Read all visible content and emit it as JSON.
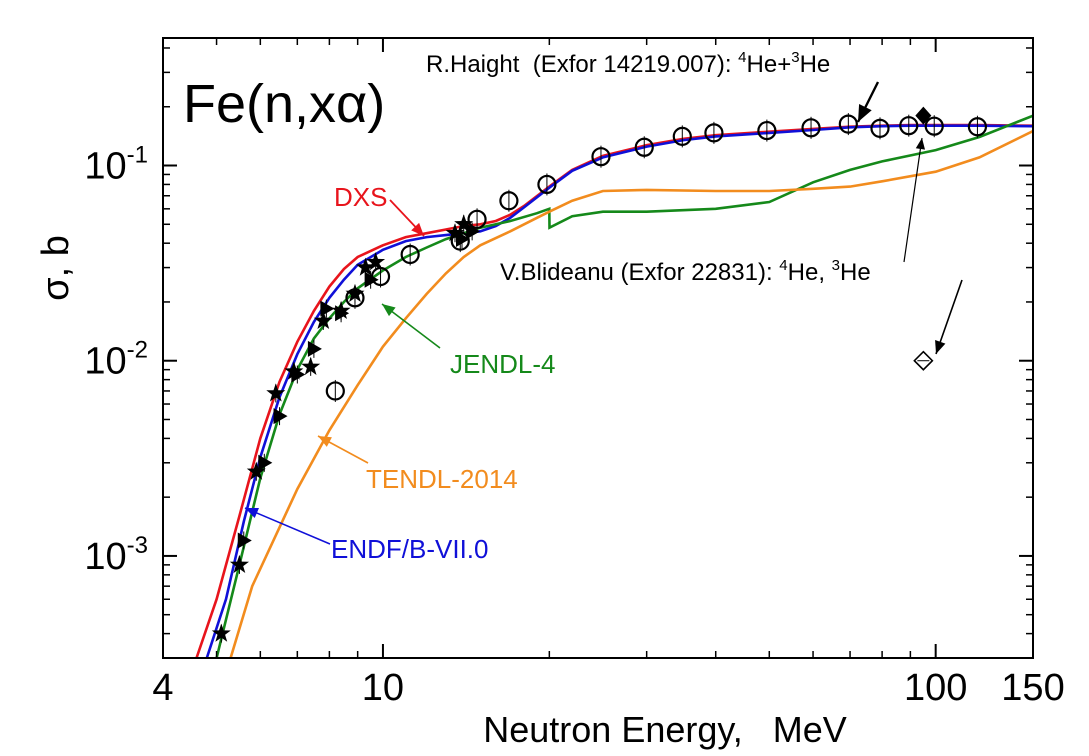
{
  "chart_data": {
    "type": "line",
    "title": "Fe(n,xα)",
    "xlabel": "Neutron Energy,   MeV",
    "ylabel": "σ,  b",
    "xscale": "log",
    "yscale": "log",
    "xlim": [
      4,
      150
    ],
    "ylim": [
      0.0003,
      0.45
    ],
    "x_ticks": [
      {
        "value": 4,
        "label": "4"
      },
      {
        "value": 10,
        "label": "10"
      },
      {
        "value": 100,
        "label": "100"
      },
      {
        "value": 150,
        "label": "150"
      }
    ],
    "y_ticks": [
      {
        "value": 0.001,
        "base": "10",
        "exp": "-3"
      },
      {
        "value": 0.01,
        "base": "10",
        "exp": "-2"
      },
      {
        "value": 0.1,
        "base": "10",
        "exp": "-1"
      }
    ],
    "grid": false,
    "series": [
      {
        "name": "DXS",
        "color": "#e8141c",
        "points": [
          [
            4.6,
            0.0003
          ],
          [
            5.0,
            0.0006
          ],
          [
            5.5,
            0.0016
          ],
          [
            6.0,
            0.004
          ],
          [
            6.5,
            0.0078
          ],
          [
            7.0,
            0.0125
          ],
          [
            7.5,
            0.018
          ],
          [
            8.0,
            0.024
          ],
          [
            8.5,
            0.0295
          ],
          [
            9.0,
            0.034
          ],
          [
            10,
            0.039
          ],
          [
            11,
            0.043
          ],
          [
            12,
            0.045
          ],
          [
            13,
            0.047
          ],
          [
            14,
            0.049
          ],
          [
            15,
            0.05
          ],
          [
            16,
            0.052
          ],
          [
            17,
            0.056
          ],
          [
            18,
            0.062
          ],
          [
            20,
            0.078
          ],
          [
            22,
            0.095
          ],
          [
            25,
            0.112
          ],
          [
            30,
            0.127
          ],
          [
            35,
            0.137
          ],
          [
            40,
            0.143
          ],
          [
            50,
            0.149
          ],
          [
            60,
            0.154
          ],
          [
            70,
            0.158
          ],
          [
            80,
            0.16
          ],
          [
            90,
            0.161
          ],
          [
            100,
            0.161
          ],
          [
            120,
            0.161
          ],
          [
            150,
            0.16
          ]
        ]
      },
      {
        "name": "ENDF/B-VII.0",
        "color": "#1010d8",
        "points": [
          [
            4.8,
            0.0003
          ],
          [
            5.2,
            0.0006
          ],
          [
            5.6,
            0.0015
          ],
          [
            6.0,
            0.0032
          ],
          [
            6.5,
            0.0065
          ],
          [
            7.0,
            0.0108
          ],
          [
            7.5,
            0.0158
          ],
          [
            8.0,
            0.021
          ],
          [
            8.5,
            0.026
          ],
          [
            9.0,
            0.031
          ],
          [
            10,
            0.037
          ],
          [
            11,
            0.041
          ],
          [
            12,
            0.043
          ],
          [
            13,
            0.044
          ],
          [
            14,
            0.045
          ],
          [
            15,
            0.046
          ],
          [
            16,
            0.049
          ],
          [
            17,
            0.054
          ],
          [
            18,
            0.061
          ],
          [
            20,
            0.077
          ],
          [
            22,
            0.094
          ],
          [
            25,
            0.11
          ],
          [
            30,
            0.125
          ],
          [
            35,
            0.135
          ],
          [
            40,
            0.141
          ],
          [
            50,
            0.147
          ],
          [
            60,
            0.152
          ],
          [
            70,
            0.157
          ],
          [
            80,
            0.159
          ],
          [
            90,
            0.16
          ],
          [
            100,
            0.16
          ],
          [
            120,
            0.16
          ],
          [
            150,
            0.159
          ]
        ]
      },
      {
        "name": "JENDL-4",
        "color": "#15891a",
        "points": [
          [
            5.0,
            0.0003
          ],
          [
            5.5,
            0.0009
          ],
          [
            6.0,
            0.0025
          ],
          [
            6.5,
            0.0053
          ],
          [
            7.0,
            0.009
          ],
          [
            7.5,
            0.013
          ],
          [
            8.0,
            0.0165
          ],
          [
            8.5,
            0.02
          ],
          [
            9.0,
            0.0235
          ],
          [
            10,
            0.029
          ],
          [
            11,
            0.034
          ],
          [
            12,
            0.038
          ],
          [
            13,
            0.042
          ],
          [
            14,
            0.045
          ],
          [
            15,
            0.048
          ],
          [
            17,
            0.052
          ],
          [
            19,
            0.057
          ],
          [
            20,
            0.06
          ],
          [
            20.01,
            0.048
          ],
          [
            22,
            0.055
          ],
          [
            25,
            0.058
          ],
          [
            30,
            0.058
          ],
          [
            40,
            0.06
          ],
          [
            50,
            0.065
          ],
          [
            60,
            0.082
          ],
          [
            70,
            0.095
          ],
          [
            80,
            0.105
          ],
          [
            100,
            0.12
          ],
          [
            120,
            0.14
          ],
          [
            150,
            0.18
          ]
        ]
      },
      {
        "name": "TENDL-2014",
        "color": "#f28c1e",
        "points": [
          [
            5.3,
            0.0003
          ],
          [
            5.8,
            0.0007
          ],
          [
            6.5,
            0.0014
          ],
          [
            7.0,
            0.0022
          ],
          [
            8.0,
            0.0044
          ],
          [
            9.0,
            0.0075
          ],
          [
            10,
            0.0118
          ],
          [
            11,
            0.0165
          ],
          [
            12,
            0.022
          ],
          [
            13,
            0.028
          ],
          [
            14,
            0.034
          ],
          [
            15,
            0.039
          ],
          [
            17,
            0.046
          ],
          [
            19,
            0.054
          ],
          [
            20,
            0.058
          ],
          [
            22,
            0.066
          ],
          [
            25,
            0.074
          ],
          [
            30,
            0.075
          ],
          [
            40,
            0.074
          ],
          [
            50,
            0.074
          ],
          [
            60,
            0.076
          ],
          [
            70,
            0.078
          ],
          [
            80,
            0.083
          ],
          [
            100,
            0.093
          ],
          [
            120,
            0.11
          ],
          [
            150,
            0.15
          ]
        ]
      }
    ],
    "markers_open_circle": [
      [
        8.2,
        0.007
      ],
      [
        8.9,
        0.021
      ],
      [
        9.9,
        0.027
      ],
      [
        11.2,
        0.035
      ],
      [
        13.8,
        0.041
      ],
      [
        14.8,
        0.053
      ],
      [
        16.9,
        0.066
      ],
      [
        19.8,
        0.08
      ],
      [
        24.8,
        0.111
      ],
      [
        29.7,
        0.124
      ],
      [
        34.8,
        0.141
      ],
      [
        39.7,
        0.147
      ],
      [
        49.5,
        0.151
      ],
      [
        59.5,
        0.156
      ],
      [
        69.5,
        0.163
      ],
      [
        79.3,
        0.155
      ],
      [
        89.4,
        0.16
      ],
      [
        99.4,
        0.159
      ],
      [
        119,
        0.158
      ]
    ],
    "markers_star": [
      [
        5.1,
        0.0004
      ],
      [
        5.5,
        0.0009
      ],
      [
        5.9,
        0.0027
      ],
      [
        6.4,
        0.0068
      ],
      [
        6.9,
        0.0088
      ],
      [
        7.4,
        0.0093
      ],
      [
        7.8,
        0.016
      ],
      [
        8.4,
        0.018
      ],
      [
        8.9,
        0.022
      ],
      [
        9.3,
        0.03
      ],
      [
        9.7,
        0.032
      ],
      [
        13.5,
        0.045
      ],
      [
        14.0,
        0.05
      ]
    ],
    "markers_triangle": [
      [
        5.6,
        0.0012
      ],
      [
        6.1,
        0.003
      ],
      [
        6.5,
        0.0052
      ],
      [
        7.0,
        0.0085
      ],
      [
        7.5,
        0.0115
      ],
      [
        7.9,
        0.0185
      ],
      [
        8.4,
        0.0175
      ],
      [
        9.5,
        0.026
      ],
      [
        13.9,
        0.042
      ],
      [
        14.5,
        0.046
      ]
    ],
    "markers_diamond_filled": [
      [
        95,
        0.18
      ]
    ],
    "markers_diamond_open": [
      [
        95,
        0.01
      ]
    ],
    "annotations": {
      "haight_prefix": "R.Haight  (Exfor 14219.007): ",
      "haight_sup1": "4",
      "haight_he1": "He+",
      "haight_sup2": "3",
      "haight_he2": "He",
      "blideanu_prefix": "V.Blideanu (Exfor 22831): ",
      "blideanu_sup1": "4",
      "blideanu_he1": "He, ",
      "blideanu_sup2": "3",
      "blideanu_he2": "He"
    }
  }
}
